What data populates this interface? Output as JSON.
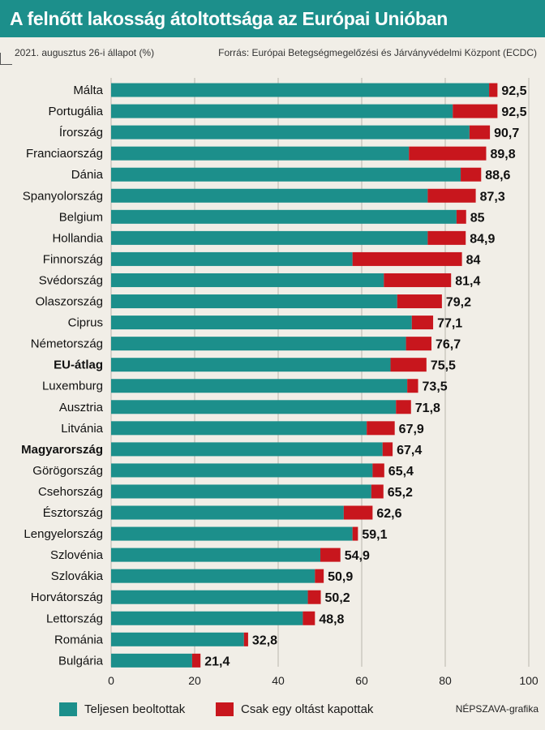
{
  "header": {
    "title": "A felnőtt lakosság átoltottsága az Európai Unióban",
    "subtitle": "2021. augusztus 26-i állapot (%)",
    "source": "Forrás: Európai Betegségmegelőzési és Járványvédelmi Központ (ECDC)"
  },
  "legend": {
    "full_label": "Teljesen beoltottak",
    "partial_label": "Csak egy oltást kapottak",
    "credit": "NÉPSZAVA-grafika"
  },
  "colors": {
    "title_bg": "#1c8f8b",
    "full": "#1c8f8b",
    "partial": "#c8161d",
    "background": "#f1eee7"
  },
  "chart_data": {
    "type": "bar",
    "orientation": "horizontal",
    "stacked": true,
    "xlim": [
      0,
      100
    ],
    "xticks": [
      0,
      20,
      40,
      60,
      80,
      100
    ],
    "grid": true,
    "categories": [
      "Málta",
      "Portugália",
      "Írország",
      "Franciaország",
      "Dánia",
      "Spanyolország",
      "Belgium",
      "Hollandia",
      "Finnország",
      "Svédország",
      "Olaszország",
      "Ciprus",
      "Németország",
      "EU-átlag",
      "Luxemburg",
      "Ausztria",
      "Litvánia",
      "Magyarország",
      "Görögország",
      "Csehország",
      "Észtország",
      "Lengyelország",
      "Szlovénia",
      "Szlovákia",
      "Horvátország",
      "Lettország",
      "Románia",
      "Bulgária"
    ],
    "bold_categories": [
      "EU-átlag",
      "Magyarország"
    ],
    "series": [
      {
        "name": "Teljesen beoltottak",
        "values": [
          90.5,
          81.8,
          85.8,
          71.3,
          83.7,
          75.8,
          82.7,
          75.8,
          57.8,
          65.3,
          68.5,
          72.0,
          70.6,
          66.9,
          70.9,
          68.2,
          61.2,
          65.0,
          62.6,
          62.3,
          55.7,
          57.8,
          50.1,
          48.8,
          47.1,
          45.9,
          31.8,
          19.4
        ]
      },
      {
        "name": "Csak egy oltást kapottak",
        "values": [
          2.0,
          10.7,
          4.9,
          18.5,
          4.9,
          11.5,
          2.3,
          9.1,
          26.2,
          16.1,
          10.7,
          5.1,
          6.1,
          8.6,
          2.6,
          3.6,
          6.7,
          2.4,
          2.8,
          2.9,
          6.9,
          1.3,
          4.8,
          2.1,
          3.1,
          2.9,
          1.0,
          2.0
        ]
      }
    ],
    "totals": [
      "92,5",
      "92,5",
      "90,7",
      "89,8",
      "88,6",
      "87,3",
      "85",
      "84,9",
      "84",
      "81,4",
      "79,2",
      "77,1",
      "76,7",
      "75,5",
      "73,5",
      "71,8",
      "67,9",
      "67,4",
      "65,4",
      "65,2",
      "62,6",
      "59,1",
      "54,9",
      "50,9",
      "50,2",
      "48,8",
      "32,8",
      "21,4"
    ]
  }
}
